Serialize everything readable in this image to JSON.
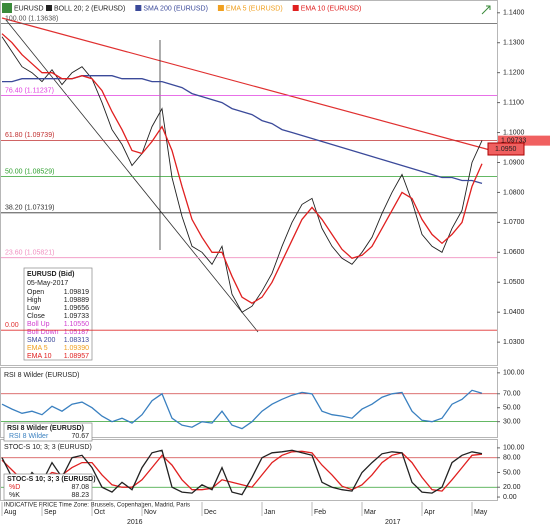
{
  "header": {
    "symbol": "EURUSD",
    "items": [
      {
        "text": "BOLL 20; 2 (EURUSD)",
        "color": "#222222"
      },
      {
        "text": "SMA 200 (EURUSD)",
        "color": "#3b4a9a"
      },
      {
        "text": "EMA 5 (EURUSD)",
        "color": "#f0a020"
      },
      {
        "text": "EMA 10 (EURUSD)",
        "color": "#e02020"
      }
    ]
  },
  "info_box": {
    "title": "EURUSD (Bid)",
    "date": "05-May-2017",
    "rows": [
      [
        "Open",
        "1.09819"
      ],
      [
        "High",
        "1.09889"
      ],
      [
        "Low",
        "1.09656"
      ],
      [
        "Close",
        "1.09733"
      ],
      [
        "Boll Up",
        "1.10550"
      ],
      [
        "Boll Down",
        "1.05187"
      ],
      [
        "SMA 200",
        "1.08313"
      ],
      [
        "EMA 5",
        "1.09390"
      ],
      [
        "EMA 10",
        "1.08957"
      ]
    ],
    "row_colors": [
      "#222222",
      "#222222",
      "#222222",
      "#222222",
      "#d040d0",
      "#d040d0",
      "#3b4a9a",
      "#f0a020",
      "#e02020"
    ]
  },
  "price_tags": [
    "1.09733",
    "1.0950"
  ],
  "footer": "INDICATIVE PRICE  Time Zone: Brussels, Copenhagen, Madrid, Paris",
  "years": [
    "2016",
    "2017"
  ],
  "chart_data": [
    {
      "type": "line",
      "categories": [
        "Aug",
        null,
        null,
        null,
        "Sep",
        null,
        null,
        null,
        null,
        "Oct",
        null,
        null,
        null,
        null,
        "Nov",
        null,
        null,
        null,
        null,
        null,
        "Dec",
        null,
        null,
        null,
        null,
        null,
        "Jan",
        null,
        null,
        null,
        null,
        "Feb",
        null,
        null,
        null,
        null,
        "Mar",
        null,
        null,
        null,
        null,
        null,
        "Apr",
        null,
        null,
        null,
        null,
        "May",
        null
      ],
      "series": [
        {
          "name": "EURUSD",
          "color": "#222222",
          "values": [
            1.132,
            1.127,
            1.122,
            1.12,
            1.117,
            1.121,
            1.116,
            1.12,
            1.122,
            1.118,
            1.11,
            1.101,
            1.096,
            1.089,
            1.093,
            1.102,
            1.108,
            1.085,
            1.072,
            1.062,
            1.06,
            1.056,
            1.062,
            1.046,
            1.04,
            1.042,
            1.047,
            1.053,
            1.062,
            1.07,
            1.076,
            1.078,
            1.068,
            1.062,
            1.058,
            1.056,
            1.06,
            1.065,
            1.073,
            1.08,
            1.086,
            1.077,
            1.066,
            1.062,
            1.06,
            1.068,
            1.074,
            1.09,
            1.0973
          ]
        },
        {
          "name": "SMA 200",
          "color": "#3b4a9a",
          "values": [
            1.117,
            1.117,
            1.118,
            1.118,
            1.118,
            1.118,
            1.118,
            1.118,
            1.119,
            1.119,
            1.119,
            1.119,
            1.118,
            1.118,
            1.118,
            1.117,
            1.117,
            1.116,
            1.115,
            1.113,
            1.112,
            1.111,
            1.11,
            1.108,
            1.107,
            1.106,
            1.104,
            1.103,
            1.101,
            1.1,
            1.099,
            1.098,
            1.097,
            1.096,
            1.095,
            1.094,
            1.093,
            1.092,
            1.091,
            1.09,
            1.089,
            1.088,
            1.087,
            1.086,
            1.085,
            1.085,
            1.084,
            1.084,
            1.083
          ]
        },
        {
          "name": "EMA 10",
          "color": "#e02020",
          "values": [
            1.133,
            1.13,
            1.126,
            1.123,
            1.12,
            1.12,
            1.118,
            1.118,
            1.119,
            1.118,
            1.114,
            1.107,
            1.101,
            1.094,
            1.093,
            1.097,
            1.102,
            1.094,
            1.082,
            1.071,
            1.065,
            1.06,
            1.06,
            1.052,
            1.045,
            1.043,
            1.045,
            1.05,
            1.057,
            1.064,
            1.071,
            1.075,
            1.071,
            1.066,
            1.061,
            1.058,
            1.059,
            1.062,
            1.068,
            1.074,
            1.08,
            1.078,
            1.071,
            1.066,
            1.063,
            1.066,
            1.07,
            1.082,
            1.0896
          ]
        }
      ],
      "levels": [
        {
          "label": "100.00 (1.13638)",
          "value": 1.13638,
          "color": "#555555"
        },
        {
          "label": "76.40 (1.11237)",
          "value": 1.11237,
          "color": "#e040e0"
        },
        {
          "label": "61.80 (1.09739)",
          "value": 1.09739,
          "color": "#c03030"
        },
        {
          "label": "50.00 (1.08529)",
          "value": 1.08529,
          "color": "#30a030"
        },
        {
          "label": "38.20 (1.07319)",
          "value": 1.07319,
          "color": "#333333"
        },
        {
          "label": "23.60 (1.05821)",
          "value": 1.05821,
          "color": "#f090c0"
        },
        {
          "label": "0.00",
          "value": 1.034,
          "color": "#e03030"
        }
      ],
      "ylim": [
        1.0227,
        1.1436
      ],
      "yticks": [
        {
          "value": 1.14,
          "label": "1.1400"
        },
        {
          "value": 1.13,
          "label": "1.1300"
        },
        {
          "value": 1.12,
          "label": "1.1200"
        },
        {
          "value": 1.11,
          "label": "1.1100"
        },
        {
          "value": 1.1,
          "label": "1.1000"
        },
        {
          "value": 1.09,
          "label": "1.0900"
        },
        {
          "value": 1.08,
          "label": "1.0800"
        },
        {
          "value": 1.07,
          "label": "1.0700"
        },
        {
          "value": 1.06,
          "label": "1.0600"
        },
        {
          "value": 1.05,
          "label": "1.0500"
        },
        {
          "value": 1.04,
          "label": "1.0400"
        },
        {
          "value": 1.03,
          "label": "1.0300"
        }
      ]
    },
    {
      "type": "line",
      "title": "RSI 8 Wilder (EURUSD)",
      "series": [
        {
          "name": "RSI 8 Wilder",
          "color": "#3a80c0",
          "values": [
            55,
            48,
            42,
            45,
            40,
            52,
            45,
            55,
            58,
            50,
            38,
            30,
            35,
            28,
            40,
            60,
            70,
            35,
            25,
            22,
            30,
            28,
            45,
            25,
            20,
            30,
            45,
            55,
            62,
            68,
            72,
            70,
            45,
            40,
            38,
            35,
            48,
            55,
            65,
            70,
            72,
            45,
            32,
            30,
            35,
            55,
            62,
            75,
            70.67
          ]
        }
      ],
      "ylim": [
        8,
        105.5
      ],
      "yticks": [
        {
          "value": 100,
          "label": "100.00"
        },
        {
          "value": 70,
          "label": "70.00"
        },
        {
          "value": 50,
          "label": "50.00"
        },
        {
          "value": 30,
          "label": "30.00"
        }
      ],
      "levels": [
        {
          "value": 70,
          "color": "#d04040"
        },
        {
          "value": 30,
          "color": "#30a030"
        }
      ]
    },
    {
      "type": "line",
      "title": "STOC-S 10; 3; 3 (EURUSD)",
      "series": [
        {
          "name": "%D",
          "color": "#e02020",
          "values": [
            75,
            55,
            35,
            35,
            35,
            50,
            45,
            60,
            70,
            70,
            45,
            25,
            20,
            20,
            35,
            60,
            85,
            65,
            35,
            15,
            15,
            18,
            35,
            30,
            25,
            20,
            45,
            70,
            85,
            92,
            93,
            90,
            65,
            45,
            22,
            15,
            25,
            45,
            70,
            85,
            90,
            70,
            40,
            15,
            12,
            35,
            60,
            85,
            87.08
          ]
        },
        {
          "name": "%K",
          "color": "#222222",
          "values": [
            80,
            40,
            20,
            50,
            30,
            70,
            40,
            80,
            85,
            60,
            20,
            10,
            30,
            15,
            60,
            90,
            95,
            20,
            10,
            8,
            25,
            15,
            60,
            10,
            5,
            40,
            80,
            90,
            92,
            95,
            90,
            85,
            30,
            20,
            15,
            12,
            50,
            70,
            88,
            92,
            90,
            30,
            10,
            8,
            20,
            70,
            85,
            92,
            88.23
          ]
        }
      ],
      "ylim": [
        -6,
        114
      ],
      "yticks": [
        {
          "value": 100,
          "label": "100.00"
        },
        {
          "value": 80,
          "label": "80.00"
        },
        {
          "value": 50,
          "label": "50.00"
        },
        {
          "value": 20,
          "label": "20.00"
        },
        {
          "value": 0,
          "label": "0.00"
        }
      ],
      "levels": [
        {
          "value": 80,
          "color": "#d04040"
        },
        {
          "value": 20,
          "color": "#30a030"
        }
      ]
    }
  ]
}
